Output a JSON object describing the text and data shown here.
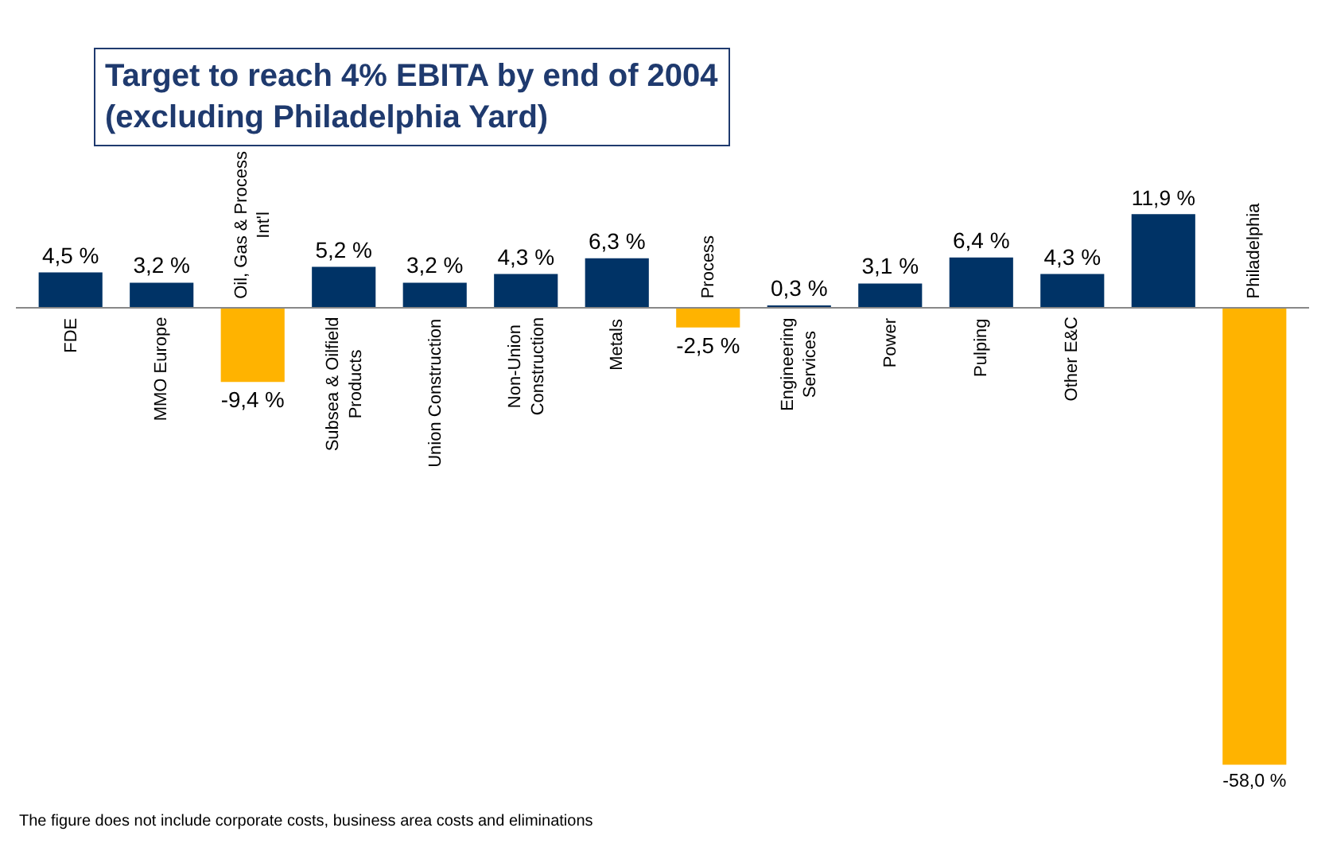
{
  "chart_data": {
    "type": "bar",
    "title": "Target to reach 4% EBITA by end of 2004",
    "subtitle": "(excluding Philadelphia Yard)",
    "categories": [
      "FDE",
      "MMO Europe",
      "Oil, Gas & Process Int'l",
      "Subsea & Oilfield Products",
      "Union Construction",
      "Non-Union Construction",
      "Metals",
      "Process",
      "Engineering Services",
      "Power",
      "Pulping",
      "Other E&C",
      null,
      "Philadelphia"
    ],
    "values": [
      4.5,
      3.2,
      -9.4,
      5.2,
      3.2,
      4.3,
      6.3,
      -2.5,
      0.3,
      3.1,
      6.4,
      4.3,
      11.9,
      -58.0
    ],
    "value_labels": [
      "4,5 %",
      "3,2 %",
      "-9,4 %",
      "5,2 %",
      "3,2 %",
      "4,3 %",
      "6,3 %",
      "-2,5 %",
      "0,3 %",
      "3,1 %",
      "6,4 %",
      "4,3 %",
      "11,9 %",
      "-58,0 %"
    ],
    "colors": [
      "#003366",
      "#003366",
      "#ffb300",
      "#003366",
      "#003366",
      "#003366",
      "#003366",
      "#ffb300",
      "#003366",
      "#003366",
      "#003366",
      "#003366",
      "#003366",
      "#ffb300"
    ],
    "annotations": [
      "The figure does not include corporate costs, business area costs and eliminations"
    ],
    "legend": false
  }
}
